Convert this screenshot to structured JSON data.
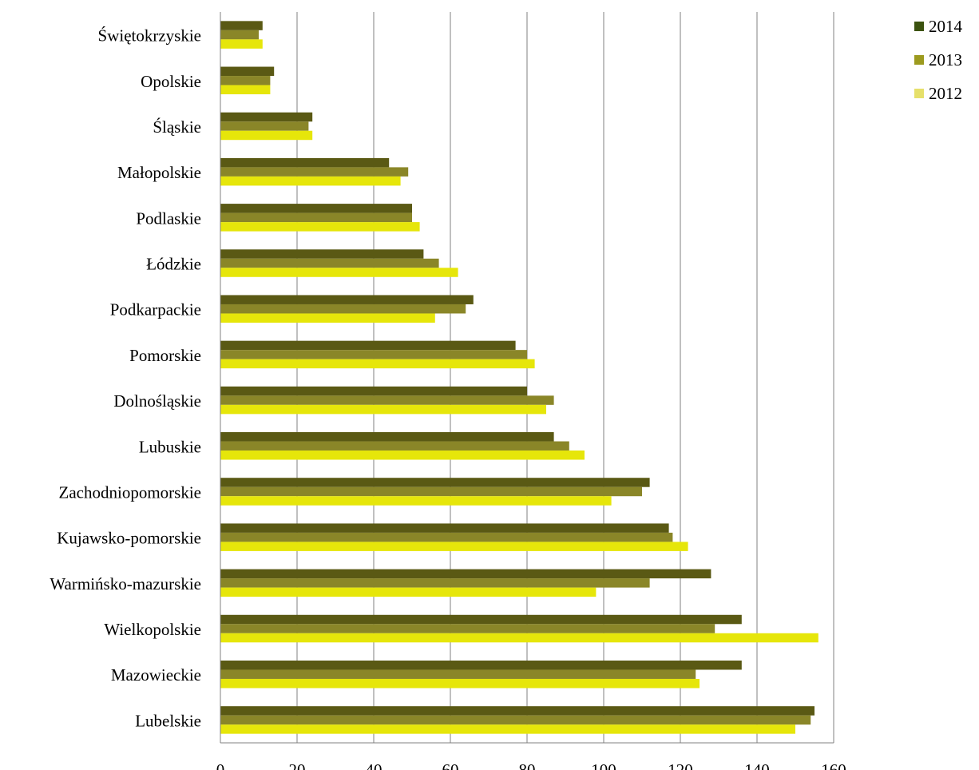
{
  "chart_data": {
    "type": "bar",
    "orientation": "horizontal",
    "title": "",
    "xlabel": "",
    "ylabel": "",
    "xlim": [
      0,
      160
    ],
    "x_ticks": [
      "0",
      "20",
      "40",
      "60",
      "80",
      "100",
      "120",
      "140",
      "160"
    ],
    "grid": "vertical",
    "legend_position": "top-right",
    "categories": [
      "Świętokrzyskie",
      "Opolskie",
      "Śląskie",
      "Małopolskie",
      "Podlaskie",
      "Łódzkie",
      "Podkarpackie",
      "Pomorskie",
      "Dolnośląskie",
      "Lubuskie",
      "Zachodniopomorskie",
      "Kujawsko-pomorskie",
      "Warmińsko-mazurskie",
      "Wielkopolskie",
      "Mazowieckie",
      "Lubelskie"
    ],
    "series": [
      {
        "name": "2014",
        "color": "#5a5914",
        "legend_color": "#3b520f",
        "values": [
          11,
          14,
          24,
          44,
          50,
          53,
          66,
          77,
          80,
          87,
          112,
          117,
          128,
          136,
          136,
          155
        ]
      },
      {
        "name": "2013",
        "color": "#8a8628",
        "legend_color": "#9c9a1e",
        "values": [
          10,
          13,
          23,
          49,
          50,
          57,
          64,
          80,
          87,
          91,
          110,
          118,
          112,
          129,
          124,
          154
        ]
      },
      {
        "name": "2012",
        "color": "#e6e60a",
        "legend_color": "#e6e06a",
        "values": [
          11,
          13,
          24,
          47,
          52,
          62,
          56,
          82,
          85,
          95,
          102,
          122,
          98,
          156,
          125,
          150
        ]
      }
    ]
  }
}
